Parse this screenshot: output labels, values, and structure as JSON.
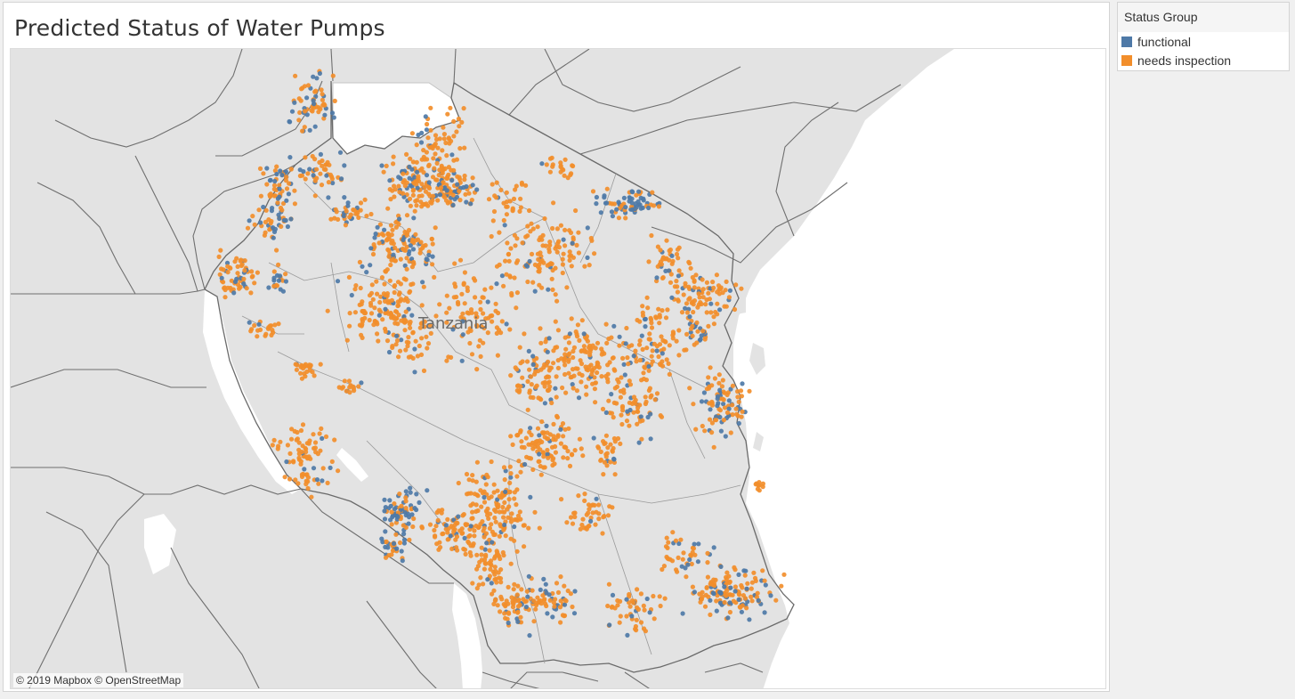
{
  "title": "Predicted Status of Water Pumps",
  "map": {
    "country_label": "Tanzania",
    "attribution": "© 2019 Mapbox © OpenStreetMap"
  },
  "legend": {
    "title": "Status Group",
    "items": [
      {
        "label": "functional",
        "color": "#4e79a7"
      },
      {
        "label": "needs inspection",
        "color": "#f28e2b"
      }
    ]
  },
  "colors": {
    "land": "#e3e3e3",
    "water": "#ffffff",
    "border": "#7a7a7a",
    "functional": "#4e79a7",
    "needs_inspection": "#f28e2b"
  }
}
